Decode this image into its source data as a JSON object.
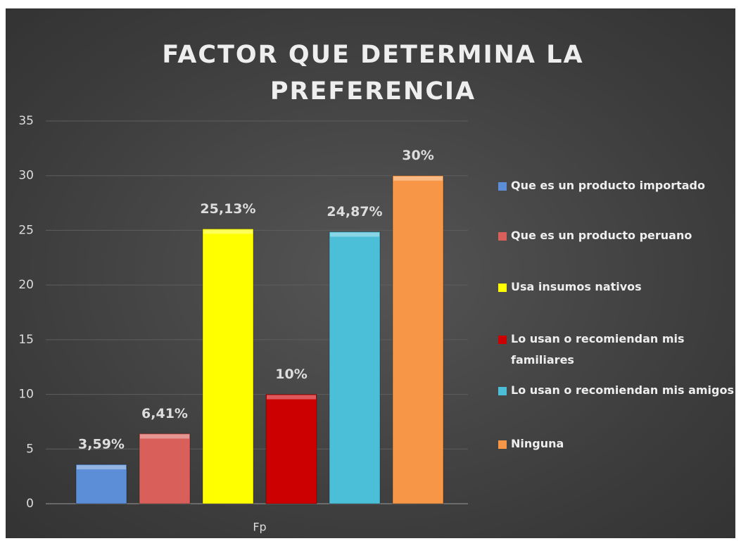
{
  "chart_data": {
    "type": "bar",
    "title": "FACTOR QUE DETERMINA LA PREFERENCIA",
    "categories": [
      "Fp"
    ],
    "series": [
      {
        "name": "Que es un producto importado",
        "color": "#5b8ed6",
        "values": [
          3.59
        ],
        "value_labels": [
          "3,59%"
        ]
      },
      {
        "name": "Que es un producto peruano",
        "color": "#d95f5a",
        "values": [
          6.41
        ],
        "value_labels": [
          "6,41%"
        ]
      },
      {
        "name": "Usa insumos nativos",
        "color": "#ffff00",
        "values": [
          25.13
        ],
        "value_labels": [
          "25,13%"
        ]
      },
      {
        "name": "Lo usan o recomiendan mis familiares",
        "color": "#cc0000",
        "values": [
          10
        ],
        "value_labels": [
          "10%"
        ]
      },
      {
        "name": "Lo usan o recomiendan mis amigos",
        "color": "#4bbfd8",
        "values": [
          24.87
        ],
        "value_labels": [
          "24,87%"
        ]
      },
      {
        "name": "Ninguna",
        "color": "#f79646",
        "values": [
          30
        ],
        "value_labels": [
          "30%"
        ]
      }
    ],
    "ylim": [
      0,
      35
    ],
    "yticks": [
      0,
      5,
      10,
      15,
      20,
      25,
      30,
      35
    ],
    "grid": true,
    "legend": "right"
  }
}
